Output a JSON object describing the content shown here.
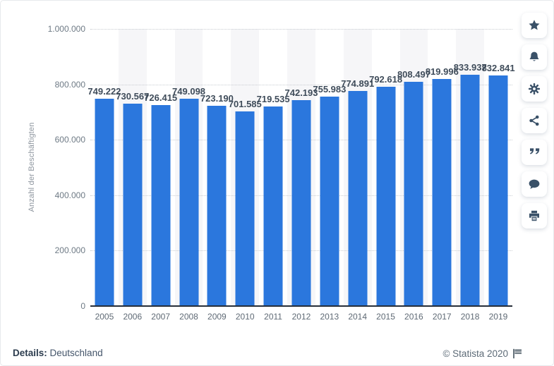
{
  "chart_data": {
    "type": "bar",
    "categories": [
      "2005",
      "2006",
      "2007",
      "2008",
      "2009",
      "2010",
      "2011",
      "2012",
      "2013",
      "2014",
      "2015",
      "2016",
      "2017",
      "2018",
      "2019"
    ],
    "values": [
      749222,
      730567,
      726415,
      749098,
      723190,
      701585,
      719535,
      742193,
      755983,
      774891,
      792618,
      808497,
      819996,
      833937,
      832841
    ],
    "value_labels": [
      "749.222",
      "730.567",
      "726.415",
      "749.098",
      "723.190",
      "701.585",
      "719.535",
      "742.193",
      "755.983",
      "774.891",
      "792.618",
      "808.497",
      "819.996",
      "833.937",
      "832.841"
    ],
    "xlabel": "",
    "ylabel": "Anzahl der Beschäftigten",
    "ylim": [
      0,
      1000000
    ],
    "yticks": [
      0,
      200000,
      400000,
      600000,
      800000,
      1000000
    ],
    "ytick_labels": [
      "0",
      "200.000",
      "400.000",
      "600.000",
      "800.000",
      "1.000.000"
    ],
    "grid": "horizontal-dotted",
    "legend": "none",
    "bar_color": "#2b77dd",
    "band_color": "#f6f6f8",
    "banded_columns": "every second column starting 2006"
  },
  "toolbar": {
    "buttons": [
      {
        "name": "favorite-button",
        "icon": "star-icon"
      },
      {
        "name": "alert-button",
        "icon": "bell-icon"
      },
      {
        "name": "settings-button",
        "icon": "gear-icon"
      },
      {
        "name": "share-button",
        "icon": "share-icon"
      },
      {
        "name": "cite-button",
        "icon": "quote-icon"
      },
      {
        "name": "comment-button",
        "icon": "comment-icon"
      },
      {
        "name": "print-button",
        "icon": "printer-icon"
      }
    ]
  },
  "footer": {
    "details_label": "Details:",
    "details_value": " Deutschland",
    "copyright": "© Statista 2020",
    "flag_icon": "flag-icon"
  },
  "colors": {
    "bar": "#2b77dd",
    "band": "#f6f6f8",
    "grid": "#c8ccd1",
    "axis_line": "#262e39",
    "value_label": "#3f4c5a",
    "tick_label": "#6e7a85",
    "icon": "#3a5168"
  }
}
